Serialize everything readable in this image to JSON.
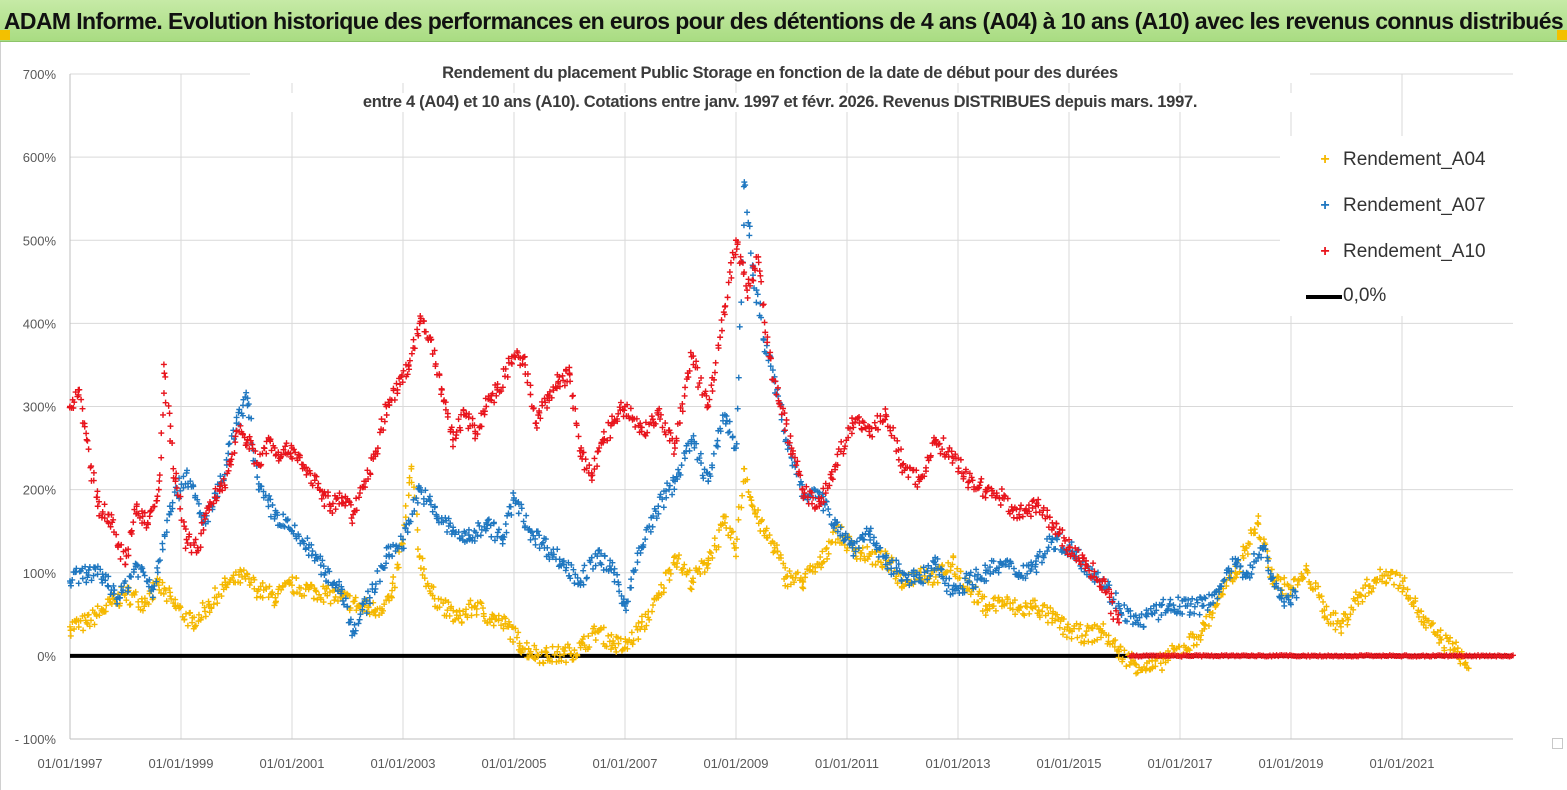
{
  "banner": {
    "title": "ADAM Informe. Evolution historique des performances en euros pour des détentions de 4 ans (A04) à 10 ans (A10) avec les revenus connus distribués"
  },
  "colors": {
    "A04": "#f5b800",
    "A07": "#1f77c0",
    "A10": "#e8141c",
    "zero": "#000000",
    "grid": "#d9d9d9",
    "banner": "#b5e08f"
  },
  "legend": {
    "items": [
      {
        "label": "Rendement_A04",
        "series": "A04",
        "marker": "+"
      },
      {
        "label": "Rendement_A07",
        "series": "A07",
        "marker": "+"
      },
      {
        "label": "Rendement_A10",
        "series": "A10",
        "marker": "+"
      },
      {
        "label": "0,0%",
        "series": "zero",
        "marker": "line"
      }
    ]
  },
  "chart_data": {
    "type": "scatter",
    "title": [
      "Rendement du placement Public Storage en fonction de la date de début pour des durées",
      "entre 4 (A04) et 10 ans (A10). Cotations entre janv. 1997 et févr. 2026. Revenus DISTRIBUES depuis mars. 1997."
    ],
    "xlabel": "",
    "ylabel": "",
    "x_range": [
      1997.0,
      2023.0
    ],
    "ylim": [
      -100,
      700
    ],
    "y_ticks": [
      -100,
      0,
      100,
      200,
      300,
      400,
      500,
      600,
      700
    ],
    "y_tick_labels": [
      "- 100%",
      "0%",
      "100%",
      "200%",
      "300%",
      "400%",
      "500%",
      "600%",
      "700%"
    ],
    "x_ticks": [
      1997,
      1999,
      2001,
      2003,
      2005,
      2007,
      2009,
      2011,
      2013,
      2015,
      2017,
      2019,
      2021
    ],
    "x_tick_labels": [
      "01/01/1997",
      "01/01/1999",
      "01/01/2001",
      "01/01/2003",
      "01/01/2005",
      "01/01/2007",
      "01/01/2009",
      "01/01/2011",
      "01/01/2013",
      "01/01/2015",
      "01/01/2017",
      "01/01/2019",
      "01/01/2021"
    ],
    "grid": true,
    "legend_position": "top-right",
    "series": [
      {
        "name": "Rendement_A04",
        "key": "A04",
        "x": [
          1997.0,
          1997.3,
          1997.6,
          1998.0,
          1998.3,
          1998.6,
          1998.9,
          1999.2,
          1999.5,
          1999.8,
          2000.1,
          2000.4,
          2000.7,
          2001.0,
          2001.3,
          2001.6,
          2001.9,
          2002.2,
          2002.5,
          2002.8,
          2003.0,
          2003.15,
          2003.3,
          2003.5,
          2003.8,
          2004.0,
          2004.3,
          2004.6,
          2004.9,
          2005.1,
          2005.3,
          2005.6,
          2005.9,
          2006.2,
          2006.5,
          2006.8,
          2007.0,
          2007.3,
          2007.6,
          2007.9,
          2008.2,
          2008.5,
          2008.8,
          2009.0,
          2009.15,
          2009.3,
          2009.5,
          2009.7,
          2009.9,
          2010.2,
          2010.5,
          2010.8,
          2011.1,
          2011.4,
          2011.7,
          2012.0,
          2012.3,
          2012.6,
          2012.9,
          2013.2,
          2013.5,
          2013.8,
          2014.1,
          2014.4,
          2014.7,
          2015.0,
          2015.3,
          2015.6,
          2015.9,
          2016.2,
          2016.5,
          2016.8,
          2017.1,
          2017.4,
          2017.7,
          2018.0,
          2018.2,
          2018.4,
          2018.7,
          2019.0,
          2019.3,
          2019.6,
          2019.9,
          2020.2,
          2020.5,
          2020.8,
          2021.1,
          2021.4,
          2021.7,
          2022.0,
          2022.2
        ],
        "y": [
          35,
          40,
          55,
          75,
          65,
          85,
          60,
          40,
          60,
          85,
          95,
          80,
          70,
          85,
          80,
          75,
          70,
          60,
          55,
          70,
          140,
          225,
          120,
          75,
          55,
          45,
          60,
          45,
          35,
          15,
          5,
          0,
          2,
          10,
          30,
          15,
          10,
          35,
          70,
          120,
          90,
          115,
          160,
          130,
          225,
          180,
          150,
          130,
          95,
          90,
          110,
          150,
          130,
          120,
          115,
          90,
          100,
          95,
          110,
          80,
          60,
          65,
          55,
          60,
          45,
          30,
          25,
          30,
          5,
          -10,
          -15,
          0,
          10,
          30,
          70,
          100,
          130,
          160,
          90,
          80,
          100,
          55,
          35,
          70,
          90,
          100,
          80,
          40,
          20,
          5,
          -15
        ]
      },
      {
        "name": "Rendement_A07",
        "key": "A07",
        "x": [
          1997.0,
          1997.3,
          1997.6,
          1997.9,
          1998.2,
          1998.5,
          1998.8,
          1999.1,
          1999.4,
          1999.7,
          2000.0,
          2000.2,
          2000.4,
          2000.7,
          2001.0,
          2001.3,
          2001.6,
          2001.9,
          2002.1,
          2002.4,
          2002.7,
          2003.0,
          2003.3,
          2003.6,
          2003.9,
          2004.2,
          2004.5,
          2004.8,
          2005.0,
          2005.3,
          2005.6,
          2005.9,
          2006.2,
          2006.5,
          2006.8,
          2007.0,
          2007.3,
          2007.6,
          2007.9,
          2008.2,
          2008.5,
          2008.8,
          2009.0,
          2009.15,
          2009.3,
          2009.5,
          2009.7,
          2009.9,
          2010.2,
          2010.5,
          2010.8,
          2011.1,
          2011.4,
          2011.7,
          2012.0,
          2012.3,
          2012.6,
          2012.9,
          2013.2,
          2013.5,
          2013.8,
          2014.1,
          2014.4,
          2014.7,
          2015.0,
          2015.3,
          2015.6,
          2015.9,
          2016.2,
          2016.5,
          2016.8,
          2017.1,
          2017.4,
          2017.7,
          2018.0,
          2018.2,
          2018.5,
          2018.8,
          2019.1
        ],
        "y": [
          90,
          100,
          95,
          70,
          110,
          80,
          180,
          220,
          160,
          200,
          280,
          310,
          200,
          170,
          150,
          130,
          100,
          80,
          30,
          70,
          120,
          140,
          200,
          170,
          150,
          140,
          160,
          140,
          190,
          150,
          130,
          110,
          90,
          120,
          100,
          60,
          130,
          180,
          210,
          260,
          210,
          290,
          250,
          570,
          470,
          380,
          330,
          260,
          200,
          190,
          160,
          130,
          150,
          110,
          100,
          90,
          110,
          80,
          90,
          100,
          110,
          100,
          110,
          140,
          130,
          110,
          90,
          60,
          40,
          50,
          60,
          60,
          60,
          80,
          110,
          100,
          130,
          70,
          70
        ]
      },
      {
        "name": "Rendement_A10",
        "key": "A10",
        "x": [
          1997.0,
          1997.15,
          1997.3,
          1997.5,
          1997.7,
          1998.0,
          1998.2,
          1998.4,
          1998.6,
          1998.7,
          1998.9,
          1999.1,
          1999.3,
          1999.5,
          1999.7,
          1999.9,
          2000.0,
          2000.2,
          2000.4,
          2000.6,
          2000.8,
          2001.0,
          2001.2,
          2001.5,
          2001.7,
          2001.9,
          2002.1,
          2002.3,
          2002.5,
          2002.7,
          2002.9,
          2003.1,
          2003.3,
          2003.5,
          2003.7,
          2003.9,
          2004.1,
          2004.3,
          2004.5,
          2004.7,
          2005.0,
          2005.2,
          2005.4,
          2005.6,
          2005.8,
          2006.0,
          2006.2,
          2006.4,
          2006.6,
          2006.8,
          2007.0,
          2007.3,
          2007.6,
          2007.9,
          2008.2,
          2008.5,
          2008.8,
          2009.0,
          2009.2,
          2009.4,
          2009.6,
          2009.8,
          2010.0,
          2010.2,
          2010.5,
          2010.8,
          2011.1,
          2011.4,
          2011.7,
          2012.0,
          2012.3,
          2012.6,
          2012.9,
          2013.2,
          2013.5,
          2013.8,
          2014.1,
          2014.4,
          2014.7,
          2015.0,
          2015.3,
          2015.6,
          2015.9
        ],
        "y": [
          300,
          320,
          260,
          180,
          170,
          110,
          180,
          160,
          200,
          340,
          210,
          140,
          130,
          180,
          200,
          230,
          270,
          260,
          230,
          260,
          240,
          250,
          230,
          200,
          180,
          190,
          170,
          210,
          240,
          300,
          320,
          350,
          400,
          380,
          320,
          260,
          290,
          270,
          300,
          320,
          360,
          350,
          280,
          310,
          330,
          340,
          240,
          220,
          260,
          280,
          300,
          270,
          290,
          250,
          360,
          300,
          420,
          500,
          440,
          480,
          360,
          300,
          250,
          200,
          180,
          230,
          280,
          270,
          290,
          230,
          210,
          260,
          240,
          210,
          200,
          190,
          170,
          180,
          160,
          130,
          110,
          90,
          40
        ]
      },
      {
        "name": "Rendement_A10 (0%)",
        "key": "A10_zero",
        "x_range": [
          2016.1,
          2023.0
        ],
        "y": 0
      }
    ],
    "zero_line": {
      "label": "0,0%",
      "y": 0
    }
  },
  "title": {
    "line1": "Rendement du placement Public Storage en fonction de la date de début pour des durées",
    "line2": "entre 4 (A04) et 10 ans (A10). Cotations entre janv. 1997 et févr. 2026. Revenus DISTRIBUES depuis mars. 1997."
  }
}
